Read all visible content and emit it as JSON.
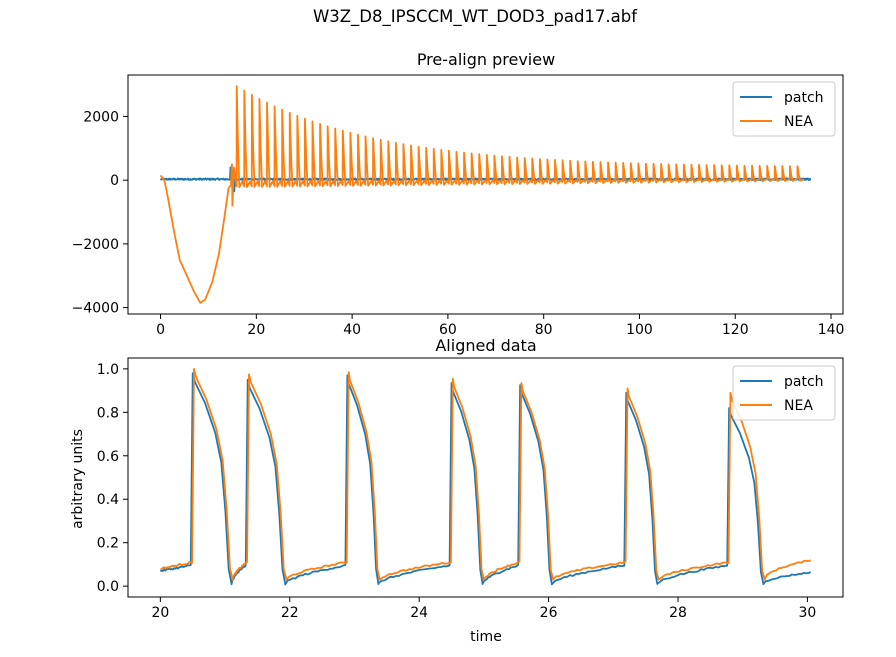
{
  "suptitle": "W3Z_D8_IPSCCM_WT_DOD3_pad17.abf",
  "colors": {
    "patch": "#1f77b4",
    "nea": "#ff7f0e"
  },
  "chart_data": [
    {
      "type": "line",
      "title": "Pre-align preview",
      "xlabel": "",
      "ylabel": "",
      "xlim": [
        -6.8,
        142.5
      ],
      "ylim": [
        -4200,
        3300
      ],
      "xticks": [
        0,
        20,
        40,
        60,
        80,
        100,
        120,
        140
      ],
      "yticks": [
        -4000,
        -2000,
        0,
        2000
      ],
      "ytick_labels": [
        "−4000",
        "−2000",
        "0",
        "2000"
      ],
      "legend": "top-right",
      "series": [
        {
          "name": "patch",
          "color": "#1f77b4",
          "x_range": [
            0,
            135.8
          ],
          "baseline": 30,
          "noise": 25,
          "early_spikes": [
            [
              14.7,
              400
            ],
            [
              15.3,
              -350
            ]
          ]
        },
        {
          "name": "NEA",
          "color": "#ff7f0e",
          "x_range": [
            0,
            133.6
          ],
          "trough": [
            [
              0,
              150
            ],
            [
              0.8,
              0
            ],
            [
              1.6,
              -600
            ],
            [
              2.8,
              -1600
            ],
            [
              4.0,
              -2500
            ],
            [
              5.5,
              -3000
            ],
            [
              7.0,
              -3500
            ],
            [
              8.3,
              -3850
            ],
            [
              9.3,
              -3750
            ],
            [
              10.8,
              -3200
            ],
            [
              12.2,
              -2300
            ],
            [
              13.3,
              -1200
            ],
            [
              14.2,
              -250
            ],
            [
              14.7,
              -150
            ],
            [
              14.9,
              500
            ]
          ],
          "prebeats": [
            [
              15.0,
              -800
            ],
            [
              15.3,
              400
            ]
          ],
          "first_beat_x": 15.9,
          "last_beat_x": 133.0,
          "beat_count": 75,
          "peak_first": 2950,
          "peak_last": 400,
          "min_level": -200
        }
      ]
    },
    {
      "type": "line",
      "title": "Aligned data",
      "xlabel": "time",
      "ylabel": "arbitrary units",
      "xlim": [
        19.5,
        30.55
      ],
      "ylim": [
        -0.05,
        1.05
      ],
      "xticks": [
        20,
        22,
        24,
        26,
        28,
        30
      ],
      "yticks": [
        0.0,
        0.2,
        0.4,
        0.6,
        0.8,
        1.0
      ],
      "ytick_labels": [
        "0.0",
        "0.2",
        "0.4",
        "0.6",
        "0.8",
        "1.0"
      ],
      "legend": "top-right",
      "x_range": [
        20.0,
        30.05
      ],
      "beats": [
        {
          "upstroke": 20.47,
          "repol_end": 21.1,
          "patch_peak": 0.98,
          "nea_peak": 1.0
        },
        {
          "upstroke": 21.32,
          "repol_end": 21.93,
          "patch_peak": 0.95,
          "nea_peak": 0.975
        },
        {
          "upstroke": 22.86,
          "repol_end": 23.37,
          "patch_peak": 0.97,
          "nea_peak": 0.985
        },
        {
          "upstroke": 24.47,
          "repol_end": 24.98,
          "patch_peak": 0.935,
          "nea_peak": 0.955
        },
        {
          "upstroke": 25.53,
          "repol_end": 26.05,
          "patch_peak": 0.925,
          "nea_peak": 0.935
        },
        {
          "upstroke": 27.17,
          "repol_end": 27.68,
          "patch_peak": 0.89,
          "nea_peak": 0.91
        },
        {
          "upstroke": 28.76,
          "repol_end": 29.32,
          "patch_peak": 0.82,
          "nea_peak": 0.89
        }
      ],
      "series": [
        {
          "name": "patch",
          "color": "#1f77b4",
          "start_level": 0.07,
          "diastolic_rise": 0.095,
          "trough": 0.01,
          "end_level": 0.063
        },
        {
          "name": "NEA",
          "color": "#ff7f0e",
          "start_level": 0.08,
          "diastolic_rise": 0.11,
          "trough": 0.03,
          "end_level": 0.12
        }
      ]
    }
  ]
}
